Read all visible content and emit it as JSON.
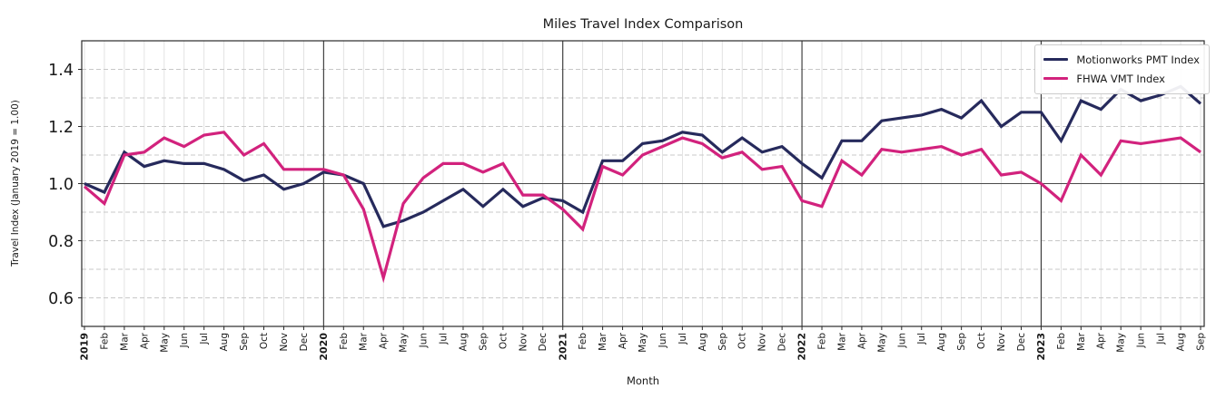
{
  "figure": {
    "title": "Miles Travel Index Comparison",
    "background": "#ffffff"
  },
  "chart_data": {
    "type": "line",
    "title": "Miles Travel Index Comparison",
    "xlabel": "Month",
    "ylabel": "Travel Index (January 2019 = 1.00)",
    "ylim": [
      0.5,
      1.5
    ],
    "yticks": [
      0.6,
      0.8,
      1.0,
      1.2,
      1.4
    ],
    "minor_hgrid_step": 0.1,
    "grid": "light solid vertical line per month; dashed horizontal lines every 0.1; solid reference line at 1.00; solid dark vertical line at each January",
    "legend_position": "upper right",
    "reference_line_y": 1.0,
    "year_line_indices": [
      12,
      24,
      36,
      48
    ],
    "x_tick_labels": [
      "2019",
      "Feb",
      "Mar",
      "Apr",
      "May",
      "Jun",
      "Jul",
      "Aug",
      "Sep",
      "Oct",
      "Nov",
      "Dec",
      "2020",
      "Feb",
      "Mar",
      "Apr",
      "May",
      "Jun",
      "Jul",
      "Aug",
      "Sep",
      "Oct",
      "Nov",
      "Dec",
      "2021",
      "Feb",
      "Mar",
      "Apr",
      "May",
      "Jun",
      "Jul",
      "Aug",
      "Sep",
      "Oct",
      "Nov",
      "Dec",
      "2022",
      "Feb",
      "Mar",
      "Apr",
      "May",
      "Jun",
      "Jul",
      "Aug",
      "Sep",
      "Oct",
      "Nov",
      "Dec",
      "2023",
      "Feb",
      "Mar",
      "Apr",
      "May",
      "Jun",
      "Jul",
      "Aug",
      "Sep"
    ],
    "series": [
      {
        "name": "Motionworks PMT Index",
        "color": "#262a5c",
        "values": [
          1.0,
          0.97,
          1.11,
          1.06,
          1.08,
          1.07,
          1.07,
          1.05,
          1.01,
          1.03,
          0.98,
          1.0,
          1.04,
          1.03,
          1.0,
          0.85,
          0.87,
          0.9,
          0.94,
          0.98,
          0.92,
          0.98,
          0.92,
          0.95,
          0.94,
          0.9,
          1.08,
          1.08,
          1.14,
          1.15,
          1.18,
          1.17,
          1.11,
          1.16,
          1.11,
          1.13,
          1.07,
          1.02,
          1.15,
          1.15,
          1.22,
          1.23,
          1.24,
          1.26,
          1.23,
          1.29,
          1.2,
          1.25,
          1.25,
          1.15,
          1.29,
          1.26,
          1.33,
          1.29,
          1.31,
          1.34,
          1.28
        ]
      },
      {
        "name": "FHWA VMT Index",
        "color": "#d2227d",
        "values": [
          0.99,
          0.93,
          1.1,
          1.11,
          1.16,
          1.13,
          1.17,
          1.18,
          1.1,
          1.14,
          1.05,
          1.05,
          1.05,
          1.03,
          0.91,
          0.67,
          0.93,
          1.02,
          1.07,
          1.07,
          1.04,
          1.07,
          0.96,
          0.96,
          0.91,
          0.84,
          1.06,
          1.03,
          1.1,
          1.13,
          1.16,
          1.14,
          1.09,
          1.11,
          1.05,
          1.06,
          0.94,
          0.92,
          1.08,
          1.03,
          1.12,
          1.11,
          1.12,
          1.13,
          1.1,
          1.12,
          1.03,
          1.04,
          1.0,
          0.94,
          1.1,
          1.03,
          1.15,
          1.14,
          1.15,
          1.16,
          1.11
        ]
      }
    ],
    "colors": {
      "spine": "#2a2a2a",
      "month_grid": "#dcdcdc",
      "dashed_grid": "#c8c8c8",
      "reference_line": "#4a4a4a",
      "year_line": "#333333",
      "tick_label": "#1a1a1a"
    }
  }
}
